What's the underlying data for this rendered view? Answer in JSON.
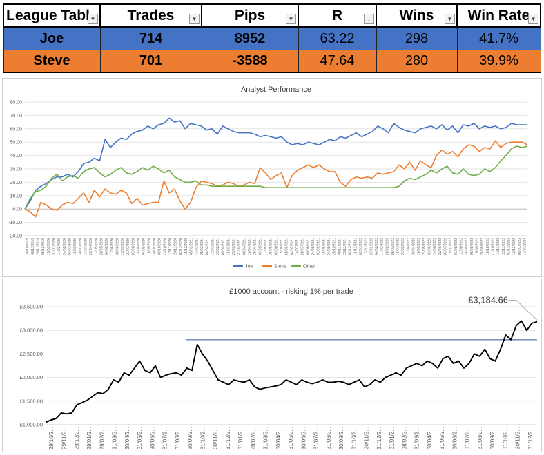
{
  "league_table": {
    "headers": [
      {
        "key": "name",
        "label": "League Tabl",
        "filter_icon": "dropdown-arrow-icon"
      },
      {
        "key": "trades",
        "label": "Trades",
        "filter_icon": "dropdown-arrow-icon"
      },
      {
        "key": "pips",
        "label": "Pips",
        "filter_icon": "dropdown-arrow-icon"
      },
      {
        "key": "r",
        "label": "R",
        "filter_icon": "sort-descending-icon"
      },
      {
        "key": "wins",
        "label": "Wins",
        "filter_icon": "dropdown-arrow-icon"
      },
      {
        "key": "win_rate",
        "label": "Win Rate",
        "filter_icon": "dropdown-arrow-icon"
      }
    ],
    "rows": [
      {
        "name": "Joe",
        "trades": "714",
        "pips": "8952",
        "r": "63.22",
        "wins": "298",
        "win_rate": "41.7%",
        "color": "#4472c4"
      },
      {
        "name": "Steve",
        "trades": "701",
        "pips": "-3588",
        "r": "47.64",
        "wins": "280",
        "win_rate": "39.9%",
        "color": "#ed7d31"
      }
    ]
  },
  "chart_data": [
    {
      "type": "line",
      "title": "Analyst Performance",
      "xlabel": "",
      "ylabel": "",
      "ylim": [
        -20,
        80
      ],
      "yticks": [
        "80.00",
        "70.00",
        "60.00",
        "50.00",
        "40.00",
        "30.00",
        "20.00",
        "10.00",
        "0.00",
        "-10.00",
        "-20.00"
      ],
      "grid": true,
      "legend": "bottom",
      "x_tick_labels": [
        "30/10/2019",
        "08/11/2019",
        "29/11/2019",
        "09/12/2019",
        "15/01/2020",
        "31/01/2020",
        "14/02/2020",
        "24/02/2020",
        "03/03/2020",
        "16/03/2020",
        "30/03/2020",
        "14/04/2020",
        "29/04/2020",
        "12/05/2020",
        "28/05/2020",
        "04/06/2020",
        "17/06/2020",
        "30/06/2020",
        "13/07/2020",
        "27/07/2020",
        "07/08/2020",
        "18/08/2020",
        "04/09/2020",
        "16/09/2020",
        "30/09/2020",
        "09/10/2020",
        "23/10/2020",
        "12/11/2020",
        "23/11/2020",
        "02/12/2020",
        "15/12/2020",
        "05/01/2021",
        "14/01/2021",
        "25/01/2021",
        "04/02/2021",
        "12/02/2021",
        "23/02/2021",
        "09/03/2021",
        "15/03/2021",
        "23/03/2021",
        "31/03/2021",
        "08/04/2021",
        "19/04/2021",
        "28/04/2021",
        "07/05/2021",
        "17/05/2021",
        "26/05/2021",
        "07/06/2021",
        "15/06/2021",
        "28/06/2021",
        "02/07/2021",
        "14/07/2021",
        "28/07/2021",
        "05/08/2021",
        "24/08/2021",
        "01/09/2021",
        "16/09/2021",
        "24/09/2021",
        "25/10/2021",
        "08/11/2021",
        "23/11/2021",
        "03/12/2021",
        "16/12/2021",
        "07/01/2022",
        "17/01/2022",
        "27/01/2022",
        "04/02/2022",
        "17/02/2022",
        "28/02/2022",
        "08/03/2022",
        "18/03/2022",
        "31/03/2022",
        "11/04/2022",
        "26/04/2022",
        "10/05/2022",
        "23/05/2022",
        "01/06/2022",
        "14/06/2022",
        "22/06/2022",
        "07/07/2022",
        "19/07/2022",
        "01/08/2022",
        "11/08/2022",
        "24/08/2022",
        "05/09/2022",
        "15/09/2022",
        "26/09/2022",
        "10/10/2022",
        "21/10/2022",
        "14/11/2022",
        "22/11/2022",
        "02/12/2022",
        "12/12/2022",
        "05/01/2023",
        "13/01/2023"
      ],
      "series": [
        {
          "name": "Joe",
          "color": "#4472c4",
          "values": [
            0,
            6,
            14,
            17,
            19,
            22,
            24,
            24,
            26,
            24,
            28,
            34,
            35,
            38,
            36,
            52,
            46,
            50,
            53,
            52,
            56,
            58,
            59,
            62,
            60,
            63,
            64,
            68,
            65,
            66,
            60,
            64,
            63,
            62,
            59,
            60,
            56,
            62,
            60,
            58,
            57,
            57,
            57,
            56,
            54,
            55,
            54,
            53,
            54,
            50,
            48,
            49,
            48,
            50,
            49,
            48,
            50,
            52,
            51,
            54,
            53,
            55,
            57,
            54,
            56,
            58,
            62,
            60,
            57,
            64,
            61,
            59,
            58,
            57,
            60,
            61,
            62,
            60,
            63,
            59,
            62,
            57,
            63,
            62,
            64,
            60,
            62,
            61,
            62,
            60,
            61,
            64,
            63,
            63,
            63
          ]
        },
        {
          "name": "Steve",
          "color": "#ed7d31",
          "values": [
            0,
            -2,
            -6,
            5,
            3,
            0,
            -1,
            3,
            5,
            4,
            8,
            12,
            5,
            14,
            9,
            15,
            12,
            11,
            14,
            12,
            4,
            8,
            3,
            4,
            5,
            5,
            21,
            12,
            15,
            6,
            0,
            5,
            16,
            21,
            20,
            19,
            17,
            18,
            20,
            19,
            17,
            18,
            20,
            19,
            31,
            27,
            22,
            25,
            27,
            16,
            25,
            29,
            31,
            33,
            31,
            33,
            30,
            28,
            28,
            20,
            17,
            22,
            24,
            23,
            24,
            23,
            27,
            26,
            27,
            28,
            33,
            30,
            35,
            29,
            36,
            33,
            31,
            40,
            44,
            41,
            43,
            39,
            45,
            48,
            47,
            43,
            46,
            45,
            51,
            46,
            49,
            50,
            50,
            50,
            48
          ]
        },
        {
          "name": "Other",
          "color": "#70ad47",
          "values": [
            0,
            8,
            13,
            14,
            17,
            23,
            26,
            21,
            24,
            25,
            23,
            28,
            30,
            31,
            27,
            24,
            26,
            29,
            31,
            27,
            26,
            28,
            31,
            29,
            32,
            30,
            27,
            29,
            24,
            22,
            20,
            20,
            21,
            18,
            18,
            17,
            17,
            17,
            17,
            17,
            17,
            17,
            17,
            17,
            17,
            16,
            16,
            16,
            16,
            16,
            16,
            16,
            16,
            16,
            16,
            16,
            16,
            16,
            16,
            16,
            16,
            16,
            16,
            16,
            16,
            16,
            16,
            16,
            16,
            16,
            17,
            21,
            23,
            22,
            24,
            26,
            29,
            27,
            30,
            32,
            27,
            26,
            30,
            26,
            25,
            26,
            30,
            28,
            31,
            36,
            40,
            45,
            47,
            46,
            47
          ]
        }
      ]
    },
    {
      "type": "line",
      "title": "£1000 account - risking 1% per trade",
      "xlabel": "",
      "ylabel": "",
      "ylim": [
        1000,
        3500
      ],
      "yticks": [
        "£3,500.00",
        "£3,000.00",
        "£2,500.00",
        "£2,000.00",
        "£1,500.00",
        "£1,000.00"
      ],
      "grid": true,
      "annotation": {
        "label": "£3,184.66",
        "value": 3184.66
      },
      "reference_line": {
        "value": 2800,
        "color": "#2f5597"
      },
      "x_tick_labels": [
        "29/10/2...",
        "29/11/2...",
        "29/12/2...",
        "29/01/2...",
        "29/02/2...",
        "31/03/2...",
        "30/04/2...",
        "31/05/2...",
        "30/06/2...",
        "31/07/2...",
        "31/08/2...",
        "30/09/2...",
        "31/10/2...",
        "30/11/2...",
        "31/12/2...",
        "31/01/2...",
        "28/02/2...",
        "31/03/2...",
        "30/04/2...",
        "31/05/2...",
        "30/06/2...",
        "31/07/2...",
        "31/08/2...",
        "30/09/2...",
        "31/10/2...",
        "30/11/2...",
        "31/12/2...",
        "31/01/2...",
        "28/02/2...",
        "31/03/2...",
        "30/04/2...",
        "31/05/2...",
        "30/06/2...",
        "31/07/2...",
        "31/08/2...",
        "30/09/2...",
        "31/10/2...",
        "30/11/2...",
        "31/12/2..."
      ],
      "series": [
        {
          "name": "",
          "color": "#000000",
          "values": [
            1050,
            1100,
            1130,
            1250,
            1230,
            1250,
            1420,
            1470,
            1520,
            1600,
            1680,
            1660,
            1750,
            1950,
            1900,
            2100,
            2050,
            2200,
            2350,
            2150,
            2100,
            2250,
            2000,
            2050,
            2080,
            2100,
            2050,
            2200,
            2150,
            2700,
            2500,
            2350,
            2150,
            1950,
            1900,
            1850,
            1950,
            1920,
            1900,
            1950,
            1800,
            1750,
            1780,
            1800,
            1820,
            1850,
            1950,
            1900,
            1850,
            1950,
            1900,
            1870,
            1900,
            1950,
            1900,
            1900,
            1920,
            1900,
            1850,
            1900,
            1950,
            1800,
            1850,
            1950,
            1900,
            2000,
            2050,
            2100,
            2050,
            2200,
            2250,
            2300,
            2250,
            2350,
            2300,
            2200,
            2400,
            2450,
            2300,
            2350,
            2200,
            2300,
            2500,
            2450,
            2600,
            2400,
            2350,
            2600,
            2900,
            2800,
            3100,
            3200,
            3000,
            3150,
            3184.66
          ]
        }
      ]
    }
  ]
}
